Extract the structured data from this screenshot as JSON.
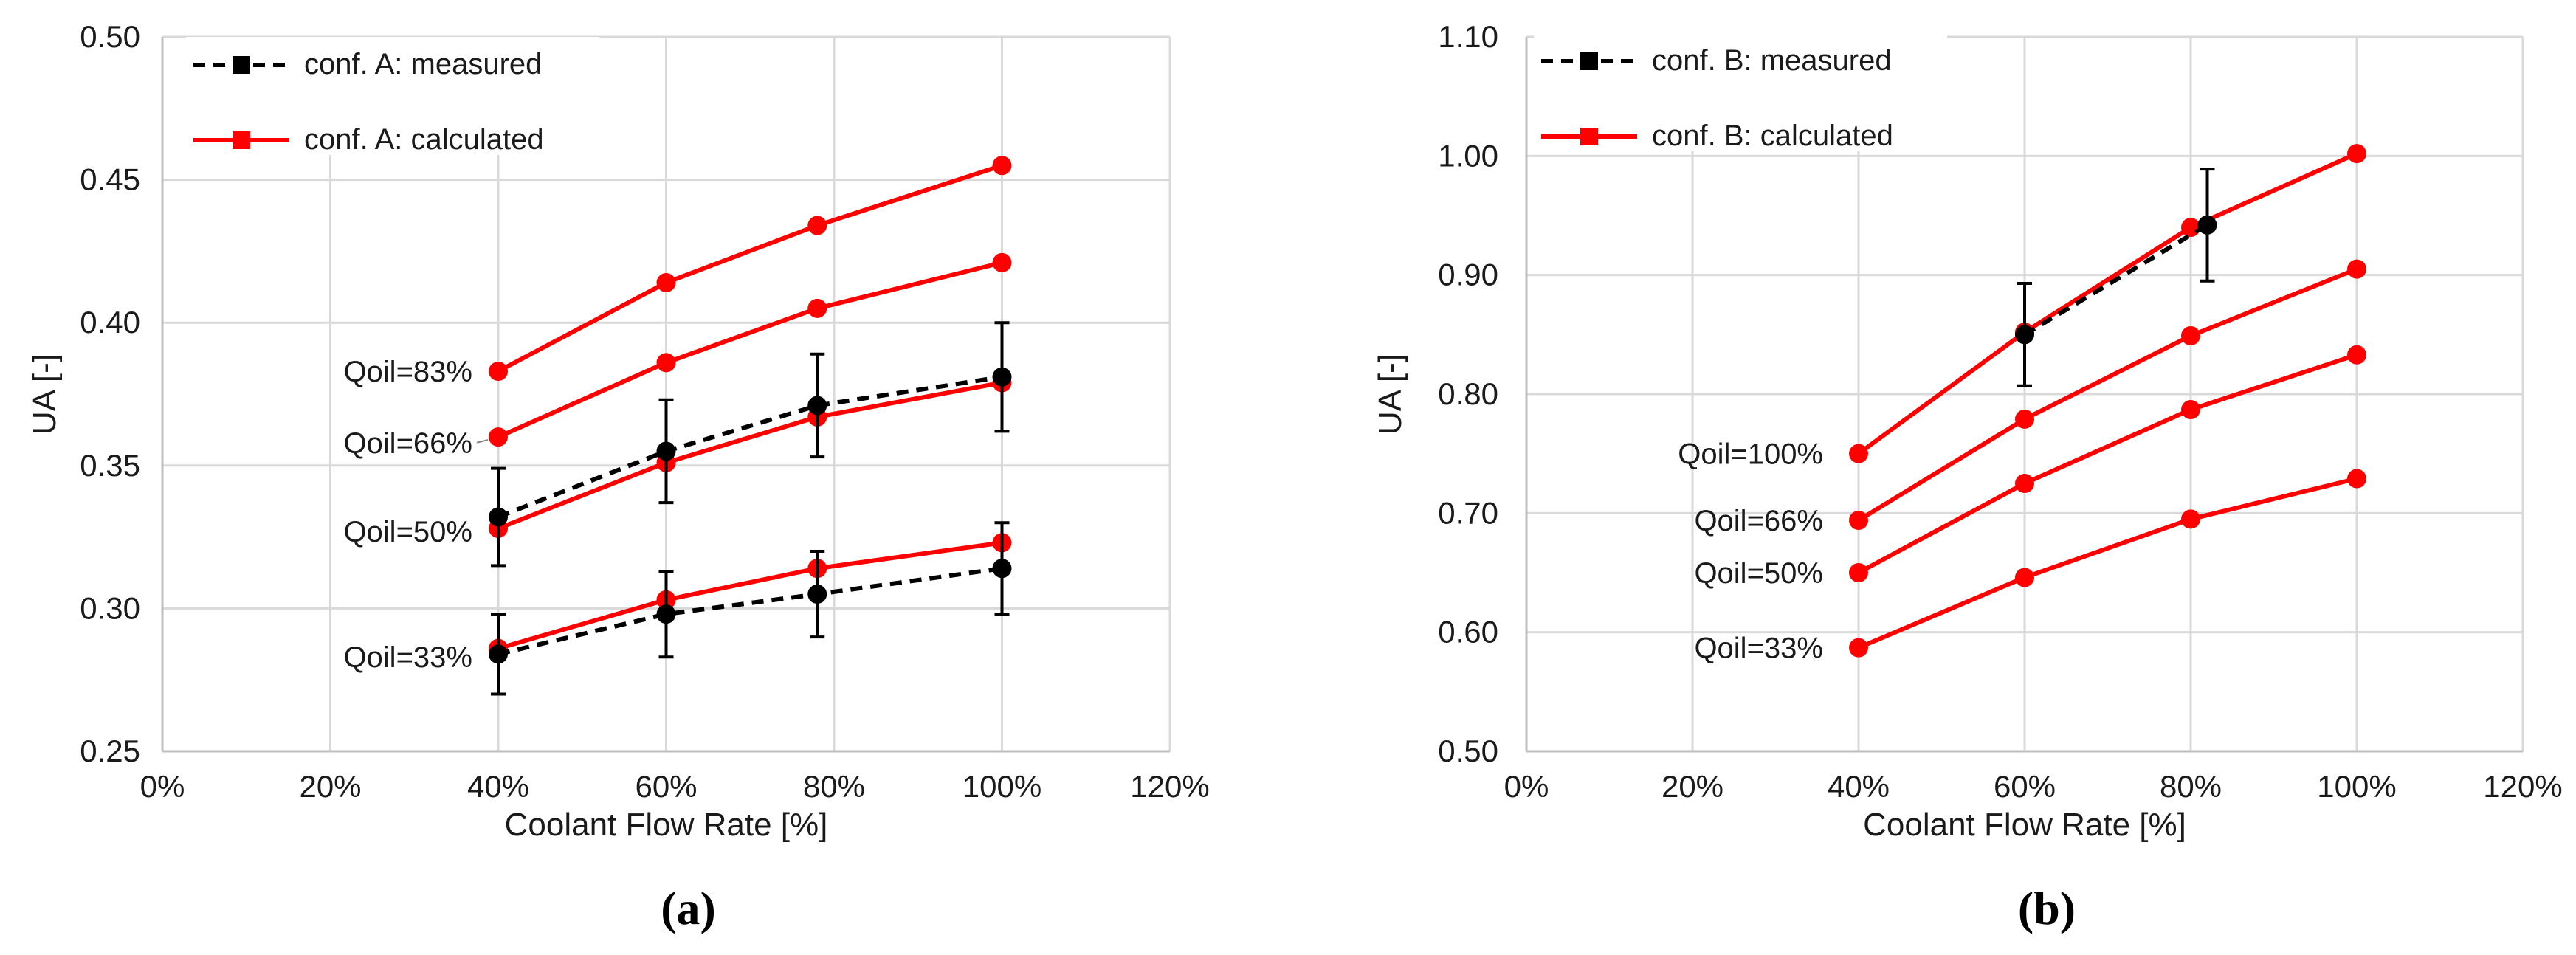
{
  "colors": {
    "measured": "#000000",
    "calculated": "#ff0000",
    "grid": "#d9d9d9"
  },
  "chart_data": [
    {
      "type": "line",
      "panel": "a",
      "caption": "(a)",
      "xlabel": "Coolant Flow Rate [%]",
      "ylabel": "UA [-]",
      "xlim": [
        0,
        120
      ],
      "ylim": [
        0.25,
        0.5
      ],
      "x_ticks": [
        0,
        20,
        40,
        60,
        80,
        100,
        120
      ],
      "x_tick_labels": [
        "0%",
        "20%",
        "40%",
        "60%",
        "80%",
        "100%",
        "120%"
      ],
      "y_ticks": [
        0.25,
        0.3,
        0.35,
        0.4,
        0.45,
        0.5
      ],
      "y_tick_labels": [
        "0.25",
        "0.30",
        "0.35",
        "0.40",
        "0.45",
        "0.50"
      ],
      "legend": [
        {
          "label": "conf. A: measured",
          "color": "#000000",
          "dashed": true
        },
        {
          "label": "conf. A: calculated",
          "color": "#ff0000",
          "dashed": false
        }
      ],
      "series": [
        {
          "name": "measured Qoil=50%",
          "kind": "measured",
          "x": [
            40,
            60,
            78,
            100
          ],
          "values": [
            0.332,
            0.355,
            0.371,
            0.381
          ],
          "err": [
            0.017,
            0.018,
            0.018,
            0.019
          ]
        },
        {
          "name": "measured Qoil=33%",
          "kind": "measured",
          "x": [
            40,
            60,
            78,
            100
          ],
          "values": [
            0.284,
            0.298,
            0.305,
            0.314
          ],
          "err": [
            0.014,
            0.015,
            0.015,
            0.016
          ]
        },
        {
          "name": "calculated Qoil=83%",
          "kind": "calculated",
          "x": [
            40,
            60,
            78,
            100
          ],
          "values": [
            0.383,
            0.414,
            0.434,
            0.455
          ]
        },
        {
          "name": "calculated Qoil=66%",
          "kind": "calculated",
          "x": [
            40,
            60,
            78,
            100
          ],
          "values": [
            0.36,
            0.386,
            0.405,
            0.421
          ]
        },
        {
          "name": "calculated Qoil=50%",
          "kind": "calculated",
          "x": [
            40,
            60,
            78,
            100
          ],
          "values": [
            0.328,
            0.351,
            0.367,
            0.379
          ]
        },
        {
          "name": "calculated Qoil=33%",
          "kind": "calculated",
          "x": [
            40,
            60,
            78,
            100
          ],
          "values": [
            0.286,
            0.303,
            0.314,
            0.323
          ]
        }
      ],
      "annotations": [
        {
          "text": "Qoil=83%",
          "y": 0.383
        },
        {
          "text": "Qoil=66%",
          "y": 0.358
        },
        {
          "text": "Qoil=50%",
          "y": 0.327
        },
        {
          "text": "Qoil=33%",
          "y": 0.283
        }
      ]
    },
    {
      "type": "line",
      "panel": "b",
      "caption": "(b)",
      "xlabel": "Coolant Flow Rate [%]",
      "ylabel": "UA [-]",
      "xlim": [
        0,
        120
      ],
      "ylim": [
        0.5,
        1.1
      ],
      "x_ticks": [
        0,
        20,
        40,
        60,
        80,
        100,
        120
      ],
      "x_tick_labels": [
        "0%",
        "20%",
        "40%",
        "60%",
        "80%",
        "100%",
        "120%"
      ],
      "y_ticks": [
        0.5,
        0.6,
        0.7,
        0.8,
        0.9,
        1.0,
        1.1
      ],
      "y_tick_labels": [
        "0.50",
        "0.60",
        "0.70",
        "0.80",
        "0.90",
        "1.00",
        "1.10"
      ],
      "legend": [
        {
          "label": "conf. B: measured",
          "color": "#000000",
          "dashed": true
        },
        {
          "label": "conf. B: calculated",
          "color": "#ff0000",
          "dashed": false
        }
      ],
      "series": [
        {
          "name": "measured Qoil=100%",
          "kind": "measured",
          "x": [
            60,
            82
          ],
          "values": [
            0.85,
            0.942
          ],
          "err": [
            0.043,
            0.047
          ]
        },
        {
          "name": "calculated Qoil=100%",
          "kind": "calculated",
          "x": [
            40,
            60,
            80,
            100
          ],
          "values": [
            0.75,
            0.852,
            0.94,
            1.002
          ]
        },
        {
          "name": "calculated Qoil=66%",
          "kind": "calculated",
          "x": [
            40,
            60,
            80,
            100
          ],
          "values": [
            0.694,
            0.779,
            0.849,
            0.905
          ]
        },
        {
          "name": "calculated Qoil=50%",
          "kind": "calculated",
          "x": [
            40,
            60,
            80,
            100
          ],
          "values": [
            0.65,
            0.725,
            0.787,
            0.833
          ]
        },
        {
          "name": "calculated Qoil=33%",
          "kind": "calculated",
          "x": [
            40,
            60,
            80,
            100
          ],
          "values": [
            0.587,
            0.646,
            0.695,
            0.729
          ]
        }
      ],
      "annotations": [
        {
          "text": "Qoil=100%",
          "y": 0.75
        },
        {
          "text": "Qoil=66%",
          "y": 0.694
        },
        {
          "text": "Qoil=50%",
          "y": 0.65
        },
        {
          "text": "Qoil=33%",
          "y": 0.587
        }
      ]
    }
  ]
}
